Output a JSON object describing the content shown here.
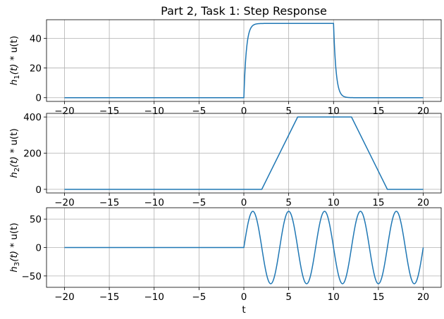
{
  "chart_data": {
    "type": "line",
    "title": "Part 2, Task 1: Step Response",
    "xlabel": "t",
    "xlim": [
      -22,
      22
    ],
    "xticks": [
      -20,
      -15,
      -10,
      -5,
      0,
      5,
      10,
      15,
      20
    ],
    "grid": true,
    "line_color": "#1f77b4",
    "subplots": [
      {
        "ylabel_name": "h",
        "ylabel_sub": "1",
        "ylabel_mid": "(t)",
        "ylabel_rest": " * u(t)",
        "ylim": [
          -2.5,
          52.5
        ],
        "yticks": [
          0,
          20,
          40
        ],
        "description": "exponential rise to 50 after t=0, exponential decay after t=10",
        "series": {
          "x": [
            -20,
            0,
            0.1,
            0.2,
            0.3,
            0.5,
            0.7,
            1.0,
            1.5,
            2.0,
            3.0,
            10.0,
            10.1,
            10.2,
            10.3,
            10.5,
            10.7,
            11.0,
            11.5,
            12.0,
            13.0,
            20
          ],
          "y": [
            0,
            0,
            12.1,
            21.3,
            28.3,
            38.1,
            43.9,
            47.6,
            49.6,
            49.95,
            50,
            50,
            37.9,
            28.7,
            21.7,
            11.9,
            6.1,
            2.4,
            0.4,
            0.05,
            0,
            0
          ]
        }
      },
      {
        "ylabel_name": "h",
        "ylabel_sub": "2",
        "ylabel_mid": "(t)",
        "ylabel_rest": " * u(t)",
        "ylim": [
          -20,
          420
        ],
        "yticks": [
          0,
          200,
          400
        ],
        "description": "trapezoid: ramp from t=2 to t=6, flat at 400 until t=12, ramp down to t=16",
        "series": {
          "x": [
            -20,
            2,
            6,
            12,
            16,
            20
          ],
          "y": [
            0,
            0,
            400,
            400,
            0,
            0
          ]
        }
      },
      {
        "ylabel_name": "h",
        "ylabel_sub": "3",
        "ylabel_mid": "(t)",
        "ylabel_rest": " * u(t)",
        "ylim": [
          -70,
          70
        ],
        "yticks": [
          -50,
          0,
          50
        ],
        "description": "zero until t=0, then 63.66*sin(2*pi*(t)/4) period 4",
        "series": {
          "x": [
            -20,
            0,
            1,
            2,
            3,
            4,
            5,
            6,
            7,
            8,
            9,
            10,
            11,
            12,
            13,
            14,
            15,
            16,
            17,
            18,
            19,
            20
          ],
          "y": [
            0,
            0,
            63.66,
            0,
            -63.66,
            0,
            63.66,
            0,
            -63.66,
            0,
            63.66,
            0,
            -63.66,
            0,
            63.66,
            0,
            -63.66,
            0,
            63.66,
            0,
            -63.66,
            0
          ]
        }
      }
    ]
  }
}
